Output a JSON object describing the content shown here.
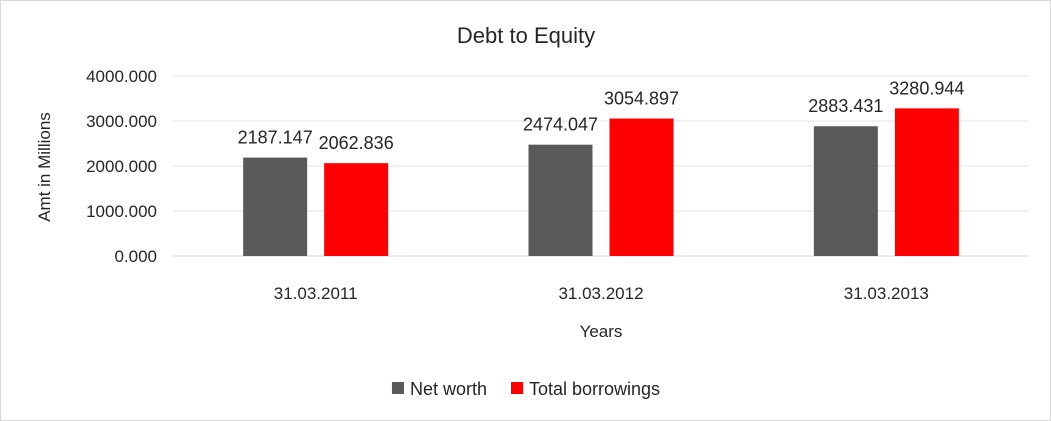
{
  "chart_data": {
    "type": "bar",
    "title": "Debt to Equity",
    "xlabel": "Years",
    "ylabel": "Amt in Millions",
    "categories": [
      "31.03.2011",
      "31.03.2012",
      "31.03.2013"
    ],
    "series": [
      {
        "name": "Net worth",
        "color": "#595959",
        "values": [
          2187.147,
          2474.047,
          2883.431
        ],
        "labels": [
          "2187.147",
          "2474.047",
          "2883.431"
        ]
      },
      {
        "name": "Total borrowings",
        "color": "#ff0000",
        "values": [
          2062.836,
          3054.897,
          3280.944
        ],
        "labels": [
          "2062.836",
          "3054.897",
          "3280.944"
        ]
      }
    ],
    "ylim": [
      0,
      4000
    ],
    "yticks": [
      0,
      1000,
      2000,
      3000,
      4000
    ],
    "ytick_labels": [
      "0.000",
      "1000.000",
      "2000.000",
      "3000.000",
      "4000.000"
    ],
    "grid": true,
    "legend_position": "bottom"
  }
}
